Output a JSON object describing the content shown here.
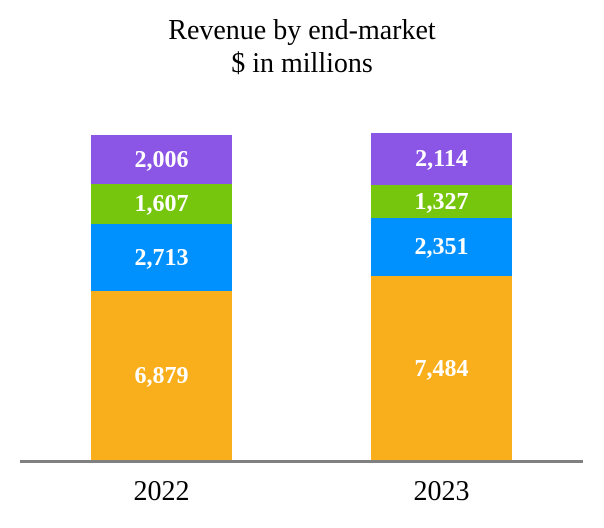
{
  "title": {
    "line1": "Revenue by end-market",
    "line2": "$ in millions"
  },
  "chart_data": {
    "type": "bar",
    "stacked": true,
    "orientation": "vertical",
    "title": "Revenue by end-market",
    "subtitle": "$ in millions",
    "categories": [
      "2022",
      "2023"
    ],
    "series_order": "top-to-bottom",
    "series": [
      {
        "name": "purple-segment",
        "color": "#8B55E6",
        "values": [
          2006,
          2114
        ]
      },
      {
        "name": "green-segment",
        "color": "#76C60E",
        "values": [
          1607,
          1327
        ]
      },
      {
        "name": "blue-segment",
        "color": "#0091FF",
        "values": [
          2713,
          2351
        ]
      },
      {
        "name": "orange-segment",
        "color": "#F9AE1B",
        "values": [
          6879,
          7484
        ]
      }
    ],
    "value_labels": {
      "color": "#FFFFFF",
      "format": "thousands-comma",
      "weight": "bold"
    },
    "xlabel": "",
    "ylabel": "",
    "legend": "none",
    "grid": false,
    "axis_line_color": "#808080"
  }
}
